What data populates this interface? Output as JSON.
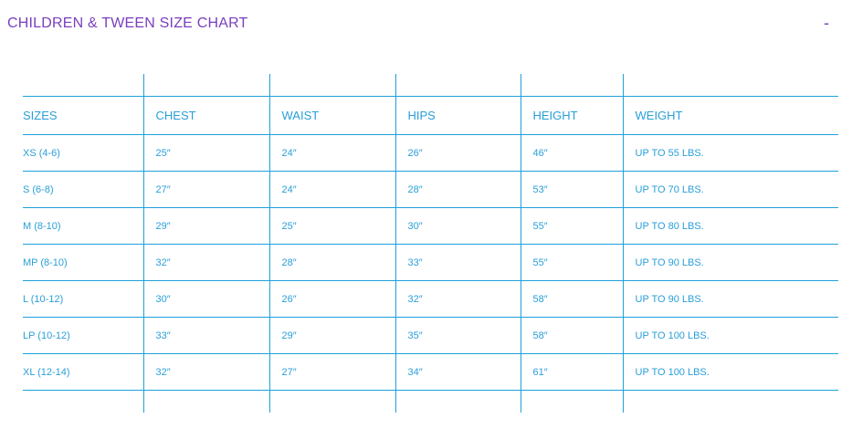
{
  "title": "CHILDREN & TWEEN SIZE CHART",
  "collapse_label": "-",
  "colors": {
    "title": "#7a3fbf",
    "text": "#2a9fd8",
    "lines": "#1ea0dc"
  },
  "columns": [
    "SIZES",
    "CHEST",
    "WAIST",
    "HIPS",
    "HEIGHT",
    "WEIGHT"
  ],
  "rows": [
    [
      "XS (4-6)",
      "25″",
      "24″",
      "26″",
      "46″",
      "UP TO 55 LBS."
    ],
    [
      "S (6-8)",
      "27″",
      "24″",
      "28″",
      "53″",
      "UP TO 70 LBS."
    ],
    [
      "M (8-10)",
      "29″",
      "25″",
      "30″",
      "55″",
      "UP TO 80 LBS."
    ],
    [
      "MP (8-10)",
      "32″",
      "28″",
      "33″",
      "55″",
      "UP TO 90 LBS."
    ],
    [
      "L (10-12)",
      "30″",
      "26″",
      "32″",
      "58″",
      "UP TO 90 LBS."
    ],
    [
      "LP (10-12)",
      "33″",
      "29″",
      "35″",
      "58″",
      "UP TO 100 LBS."
    ],
    [
      "XL (12-14)",
      "32″",
      "27″",
      "34″",
      "61″",
      "UP TO 100 LBS."
    ]
  ]
}
